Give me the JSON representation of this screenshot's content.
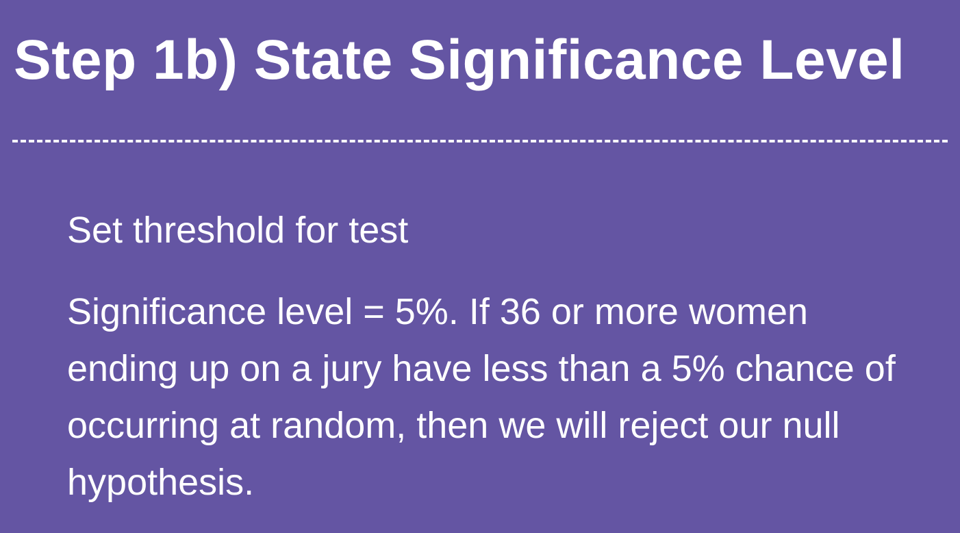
{
  "slide": {
    "title": "Step 1b) State Significance Level",
    "point_1": "Set threshold for test",
    "point_2": "Significance level = 5%. If 36 or more women ending up on a jury have less than a 5% chance of occurring at random, then we will reject our null hypothesis."
  },
  "colors": {
    "background": "#6455a3",
    "text": "#ffffff"
  }
}
